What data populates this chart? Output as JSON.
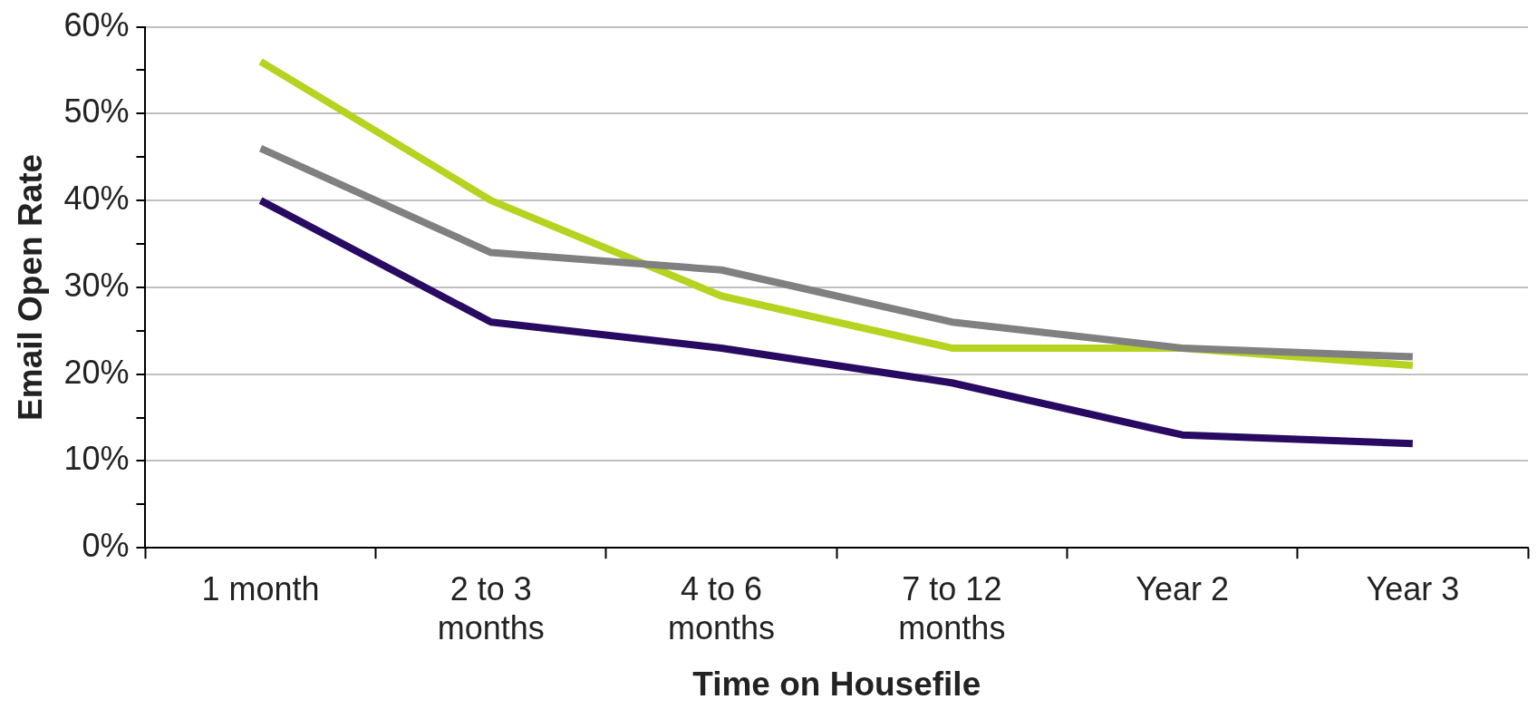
{
  "chart_data": {
    "type": "line",
    "xlabel": "Time on Housefile",
    "ylabel": "Email Open Rate",
    "categories": [
      "1 month",
      "2 to 3 months",
      "4 to 6 months",
      "7 to 12 months",
      "Year 2",
      "Year 3"
    ],
    "series": [
      {
        "color": "#808080",
        "values": [
          46,
          34,
          32,
          26,
          23,
          22
        ]
      },
      {
        "color": "#290a63",
        "values": [
          40,
          26,
          23,
          19,
          13,
          12
        ]
      },
      {
        "color": "#b5d31f",
        "values": [
          56,
          40,
          29,
          23,
          23,
          21
        ]
      }
    ],
    "ylim": [
      0,
      60
    ],
    "yticks": [
      {
        "value": 0,
        "label": "0%"
      },
      {
        "value": 5,
        "label": null
      },
      {
        "value": 10,
        "label": "10%"
      },
      {
        "value": 15,
        "label": null
      },
      {
        "value": 20,
        "label": "20%"
      },
      {
        "value": 25,
        "label": null
      },
      {
        "value": 30,
        "label": "30%"
      },
      {
        "value": 35,
        "label": null
      },
      {
        "value": 40,
        "label": "40%"
      },
      {
        "value": 45,
        "label": null
      },
      {
        "value": 50,
        "label": "50%"
      },
      {
        "value": 55,
        "label": null
      },
      {
        "value": 60,
        "label": "60%"
      }
    ],
    "grid": "y",
    "legend": false,
    "marker": "none",
    "line_style": "solid"
  }
}
